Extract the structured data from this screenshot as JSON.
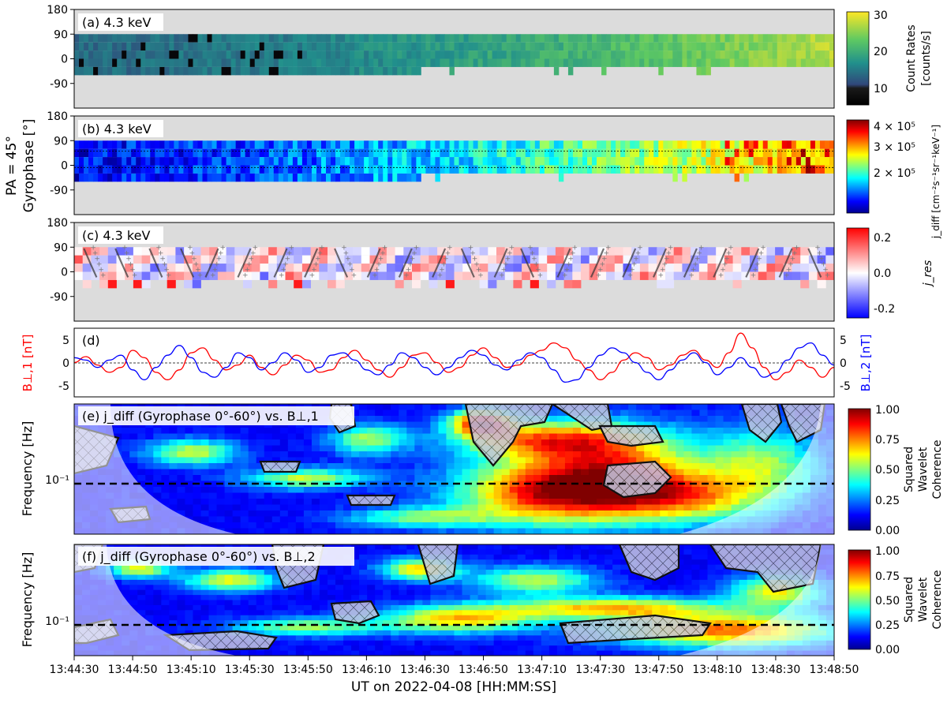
{
  "figure": {
    "shared_ylabel_line1": "PA = 45°",
    "shared_ylabel_line2": "Gyrophase [°]",
    "xlabel": "UT on 2022-04-08 [HH:MM:SS]",
    "xticks": [
      "13:44:30",
      "13:44:50",
      "13:45:10",
      "13:45:30",
      "13:45:50",
      "13:46:10",
      "13:46:30",
      "13:46:50",
      "13:47:10",
      "13:47:30",
      "13:47:50",
      "13:48:10",
      "13:48:30",
      "13:48:50"
    ]
  },
  "colors": {
    "no_data": "#dcdcdc",
    "b_perp1": "#ff0000",
    "b_perp2": "#0000ff",
    "hatch_fill": "#c8c8dc",
    "outline": "#111111"
  },
  "chart_data": [
    {
      "type": "heatmap",
      "panel": "a",
      "title": "(a) 4.3 keV",
      "yticks": [
        "180",
        "90",
        "0",
        "-90"
      ],
      "ylim": [
        -180,
        180
      ],
      "gyrophase_bins_deg": [
        90,
        60,
        30,
        0,
        -30
      ],
      "colormap": "viridis",
      "colorbar_label_line1": "Count Rates",
      "colorbar_label_line2": "[counts/s]",
      "colorbar_ticks": [
        "30",
        "20",
        "10"
      ],
      "colorbar_range": [
        5,
        30
      ],
      "trend": "count rate rises from ~13 counts/s at 13:44:30 to ~28 counts/s at 13:48:50; bins at -30° gyrophase are no-data after ~13:46:30 except scattered bins"
    },
    {
      "type": "heatmap",
      "panel": "b",
      "title": "(b) 4.3 keV",
      "yticks": [
        "180",
        "90",
        "0",
        "-90"
      ],
      "ylim": [
        -180,
        180
      ],
      "colormap": "jet",
      "colorbar_label": "j_diff [cm⁻²s⁻¹sr⁻¹keV⁻¹]",
      "colorbar_ticks": [
        "4 × 10⁵",
        "3 × 10⁵",
        "2 × 10⁵"
      ],
      "colorbar_range": [
        120000.0,
        420000.0
      ],
      "guide_lines_deg": [
        60,
        0
      ],
      "trend": "flux rises from ~1.4e5 at start to ~3.5e5 near 13:48:30"
    },
    {
      "type": "heatmap",
      "panel": "c",
      "title": "(c) 4.3 keV",
      "yticks": [
        "180",
        "90",
        "0",
        "-90"
      ],
      "ylim": [
        -180,
        180
      ],
      "colormap": "bwr",
      "colorbar_label": "j_res",
      "colorbar_ticks": [
        "0.2",
        "0.0",
        "-0.2"
      ],
      "colorbar_range": [
        -0.25,
        0.25
      ],
      "overlay": "gray phase-tracking curves with + markers"
    },
    {
      "type": "line",
      "panel": "d",
      "title": "(d)",
      "ylabel_left": "B⊥,1 [nT]",
      "ylabel_right": "B⊥,2 [nT]",
      "yticks_left": [
        "5",
        "0",
        "-5"
      ],
      "yticks_right": [
        "5",
        "0",
        "-5"
      ],
      "ylim": [
        -7,
        7
      ],
      "x_range_s": [
        0,
        260
      ],
      "series": [
        {
          "name": "B⊥,1",
          "color": "#ff0000",
          "x": [
            0,
            4,
            8,
            12,
            16,
            20,
            24,
            28,
            32,
            36,
            40,
            44,
            48,
            52,
            56,
            60,
            64,
            68,
            72,
            76,
            80,
            84,
            88,
            92,
            96,
            100,
            104,
            108,
            112,
            116,
            120,
            124,
            128,
            132,
            136,
            140,
            144,
            148,
            152,
            156,
            160,
            164,
            168,
            172,
            176,
            180,
            184,
            188,
            192,
            196,
            200,
            204,
            208,
            212,
            216,
            220,
            224,
            228,
            232,
            236,
            240,
            244,
            248,
            252,
            256,
            260
          ],
          "values": [
            0,
            1.2,
            -0.5,
            -2,
            -1,
            2.5,
            1,
            -2,
            -3.5,
            -1.5,
            2,
            3,
            0.5,
            -1.5,
            -0.5,
            1.5,
            -1,
            -2.5,
            -0.5,
            1.5,
            0.5,
            -2,
            -1.5,
            1,
            2.5,
            0.5,
            -1.5,
            -3,
            -1,
            1.5,
            2,
            0,
            -2,
            -1,
            1.5,
            3,
            1,
            -1,
            -0.5,
            1.5,
            2.5,
            4,
            3,
            0.5,
            -1.5,
            -3.5,
            -2,
            0.5,
            2,
            1,
            -1.5,
            -0.5,
            1.5,
            2.5,
            0.5,
            -1,
            2,
            6,
            3,
            -1,
            -3.5,
            -2,
            0.5,
            -1,
            -3,
            -1
          ]
        },
        {
          "name": "B⊥,2",
          "color": "#0000ff",
          "x": [
            0,
            4,
            8,
            12,
            16,
            20,
            24,
            28,
            32,
            36,
            40,
            44,
            48,
            52,
            56,
            60,
            64,
            68,
            72,
            76,
            80,
            84,
            88,
            92,
            96,
            100,
            104,
            108,
            112,
            116,
            120,
            124,
            128,
            132,
            136,
            140,
            144,
            148,
            152,
            156,
            160,
            164,
            168,
            172,
            176,
            180,
            184,
            188,
            192,
            196,
            200,
            204,
            208,
            212,
            216,
            220,
            224,
            228,
            232,
            236,
            240,
            244,
            248,
            252,
            256,
            260
          ],
          "values": [
            1,
            0.5,
            -1,
            0.5,
            1.5,
            -1.5,
            -3.5,
            -1,
            1.5,
            3.5,
            1,
            -2,
            -3,
            -1,
            2,
            1,
            -1.5,
            0,
            2,
            0.5,
            -2,
            -1,
            1.5,
            2,
            0.5,
            -1.5,
            -2.5,
            -0.5,
            2,
            1,
            -1,
            -2.5,
            -1,
            1,
            2.5,
            1.5,
            -0.5,
            -1.5,
            0.5,
            2,
            1,
            -1.5,
            -4,
            -3.5,
            -1,
            1.5,
            3,
            2,
            0,
            -2,
            -3.5,
            -1.5,
            0.5,
            2,
            0,
            -2.5,
            -1,
            1,
            -1,
            -3,
            -2,
            0.5,
            3,
            4,
            1.5,
            -0.5
          ]
        }
      ]
    },
    {
      "type": "heatmap",
      "panel": "e",
      "title": "(e) j_diff (Gyrophase 0°-60°) vs. B⊥,1",
      "ylabel": "Frequency [Hz]",
      "ytick": "10⁻¹",
      "colormap": "jet",
      "colorbar_label_lines": [
        "Squared",
        "Wavelet",
        "Coherence"
      ],
      "colorbar_ticks": [
        "1.00",
        "0.75",
        "0.50",
        "0.25",
        "0.00"
      ],
      "colorbar_range": [
        0,
        1
      ],
      "reference_frequency_hz": 0.086,
      "overlay": "hatched regions enclosed by black contours; shaded cone of influence"
    },
    {
      "type": "heatmap",
      "panel": "f",
      "title": "(f) j_diff (Gyrophase 0°-60°) vs. B⊥,2",
      "ylabel": "Frequency [Hz]",
      "ytick": "10⁻¹",
      "colormap": "jet",
      "colorbar_label_lines": [
        "Squared",
        "Wavelet",
        "Coherence"
      ],
      "colorbar_ticks": [
        "1.00",
        "0.75",
        "0.50",
        "0.25",
        "0.00"
      ],
      "colorbar_range": [
        0,
        1
      ],
      "reference_frequency_hz": 0.086,
      "overlay": "hatched regions enclosed by black contours; shaded cone of influence"
    }
  ]
}
